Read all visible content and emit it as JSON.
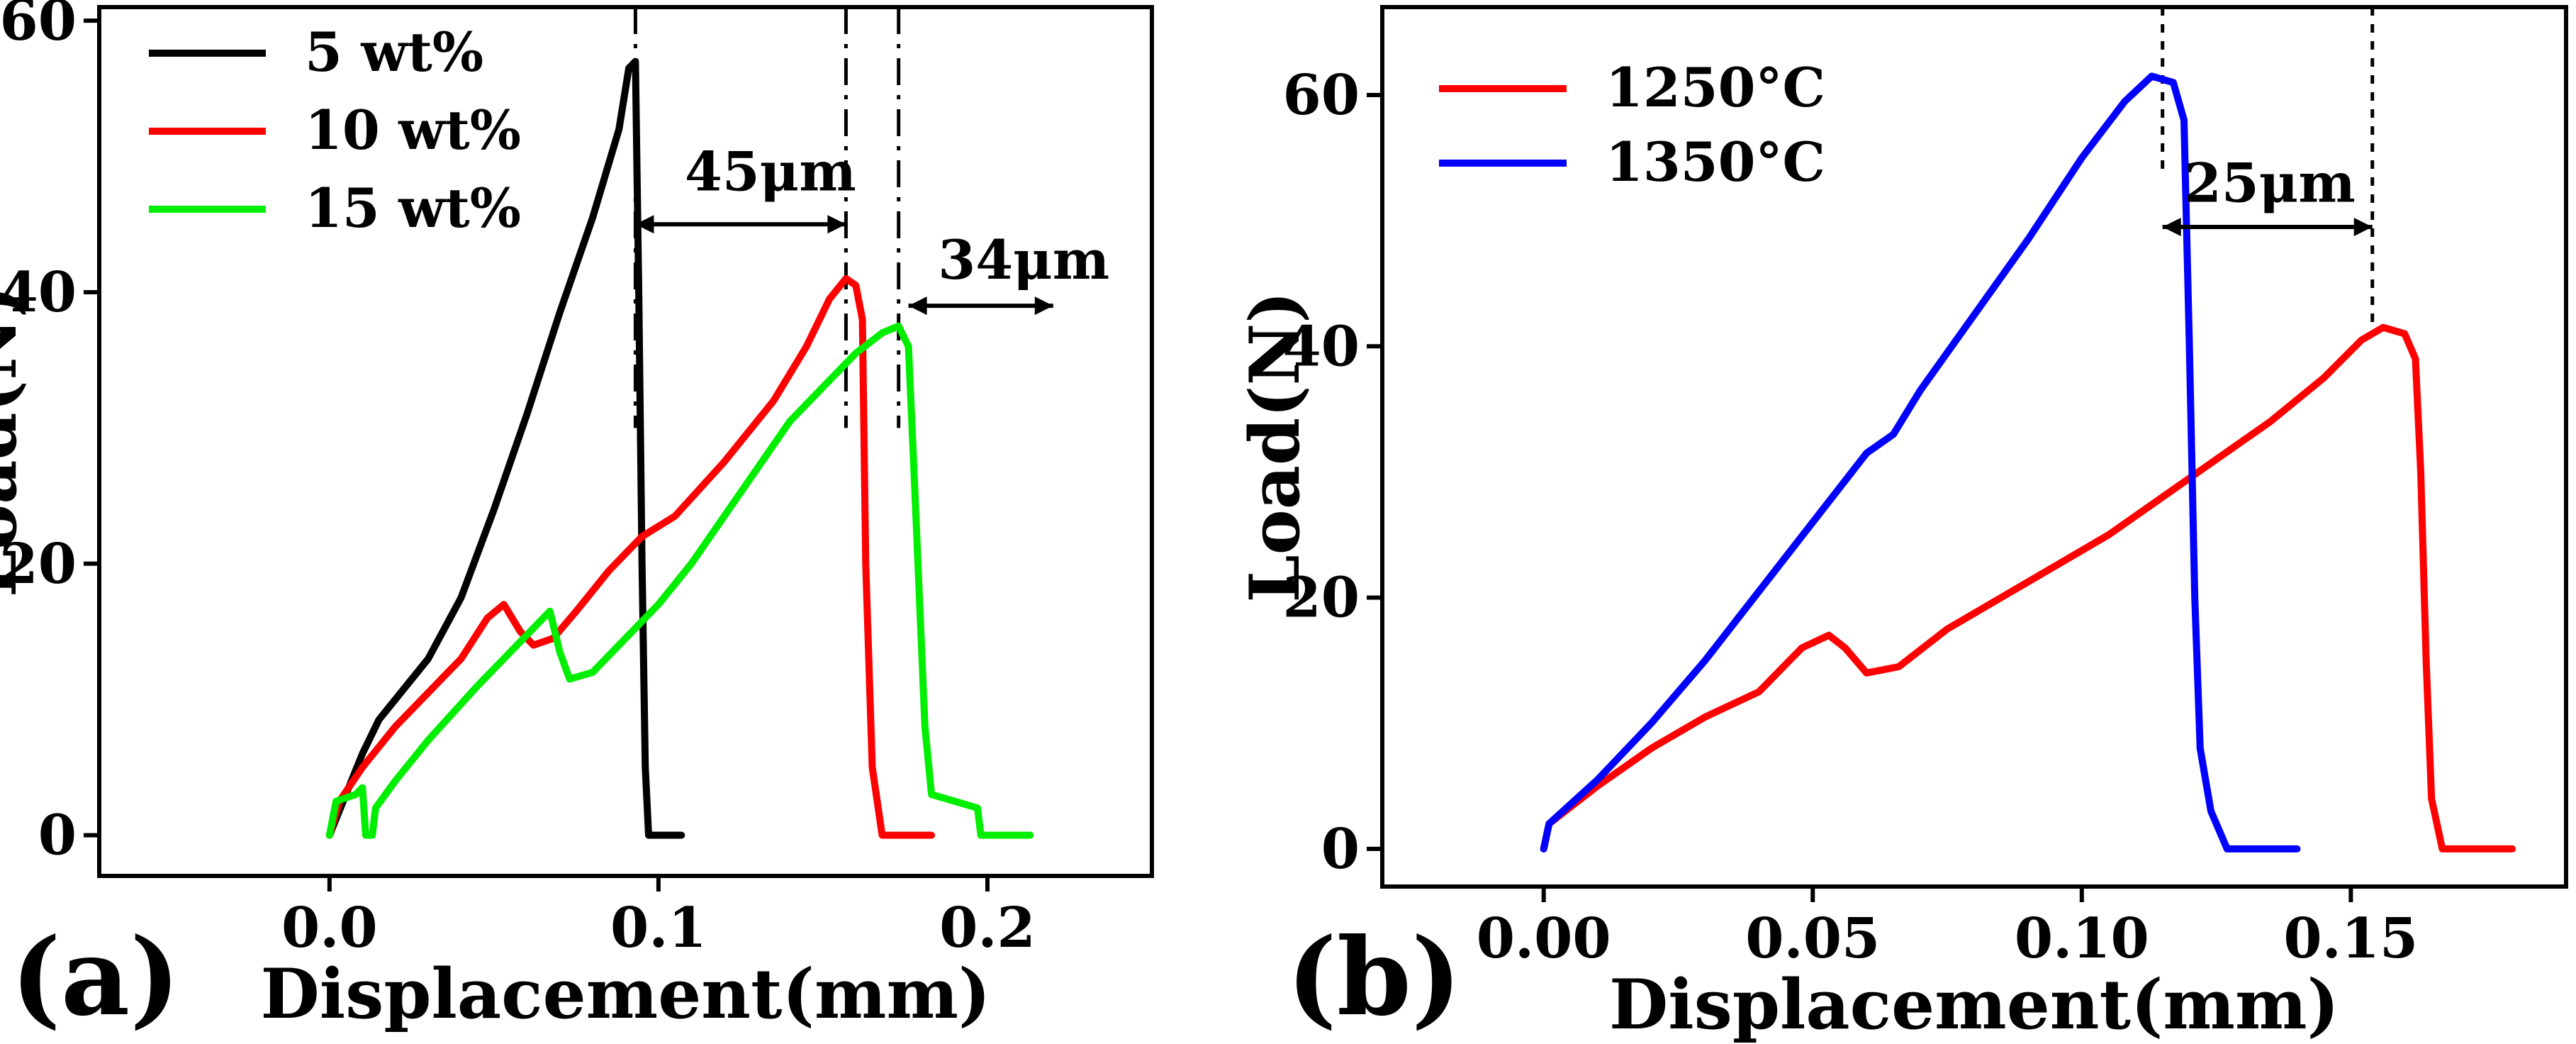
{
  "chart_data": [
    {
      "type": "line",
      "panel_label": "(a)",
      "xlabel": "Displacement(mm)",
      "ylabel": "Load(N)",
      "xlim": [
        -0.07,
        0.25
      ],
      "ylim": [
        -3,
        61
      ],
      "xticks": [
        0.0,
        0.1,
        0.2
      ],
      "xtick_labels": [
        "0.0",
        "0.1",
        "0.2"
      ],
      "yticks": [
        0,
        20,
        40,
        60
      ],
      "ytick_labels": [
        "0",
        "20",
        "40",
        "60"
      ],
      "legend": {
        "position": "top-left"
      },
      "series": [
        {
          "name": "5  wt%",
          "color": "#000000",
          "points": [
            [
              0.0,
              0
            ],
            [
              0.005,
              3
            ],
            [
              0.01,
              6
            ],
            [
              0.015,
              8.5
            ],
            [
              0.02,
              10
            ],
            [
              0.03,
              13
            ],
            [
              0.04,
              17.5
            ],
            [
              0.05,
              24
            ],
            [
              0.06,
              31
            ],
            [
              0.07,
              38.5
            ],
            [
              0.08,
              45.5
            ],
            [
              0.088,
              52
            ],
            [
              0.091,
              56.5
            ],
            [
              0.093,
              57
            ],
            [
              0.094,
              40
            ],
            [
              0.095,
              20
            ],
            [
              0.096,
              5
            ],
            [
              0.097,
              0
            ],
            [
              0.107,
              0
            ]
          ]
        },
        {
          "name": "10 wt%",
          "color": "#ff0000",
          "points": [
            [
              0.0,
              0
            ],
            [
              0.003,
              2.5
            ],
            [
              0.01,
              5
            ],
            [
              0.02,
              8
            ],
            [
              0.03,
              10.5
            ],
            [
              0.04,
              13
            ],
            [
              0.048,
              16
            ],
            [
              0.053,
              17
            ],
            [
              0.058,
              15
            ],
            [
              0.062,
              14
            ],
            [
              0.068,
              14.5
            ],
            [
              0.075,
              16.5
            ],
            [
              0.085,
              19.5
            ],
            [
              0.095,
              22
            ],
            [
              0.105,
              23.5
            ],
            [
              0.12,
              27.5
            ],
            [
              0.135,
              32
            ],
            [
              0.145,
              36
            ],
            [
              0.152,
              39.5
            ],
            [
              0.157,
              41
            ],
            [
              0.16,
              40.5
            ],
            [
              0.162,
              38
            ],
            [
              0.163,
              20
            ],
            [
              0.165,
              5
            ],
            [
              0.168,
              0
            ],
            [
              0.183,
              0
            ]
          ]
        },
        {
          "name": "15 wt%",
          "color": "#00ee00",
          "points": [
            [
              0.0,
              0
            ],
            [
              0.002,
              2.5
            ],
            [
              0.008,
              3
            ],
            [
              0.01,
              3.5
            ],
            [
              0.011,
              0
            ],
            [
              0.013,
              0
            ],
            [
              0.014,
              2
            ],
            [
              0.02,
              4
            ],
            [
              0.03,
              7
            ],
            [
              0.045,
              11
            ],
            [
              0.055,
              13.5
            ],
            [
              0.063,
              15.5
            ],
            [
              0.067,
              16.5
            ],
            [
              0.07,
              13.5
            ],
            [
              0.073,
              11.5
            ],
            [
              0.08,
              12
            ],
            [
              0.09,
              14.5
            ],
            [
              0.1,
              17
            ],
            [
              0.11,
              20
            ],
            [
              0.12,
              23.5
            ],
            [
              0.13,
              27
            ],
            [
              0.14,
              30.5
            ],
            [
              0.15,
              33
            ],
            [
              0.16,
              35.5
            ],
            [
              0.168,
              37
            ],
            [
              0.173,
              37.5
            ],
            [
              0.176,
              36
            ],
            [
              0.178,
              25
            ],
            [
              0.181,
              8
            ],
            [
              0.183,
              3
            ],
            [
              0.19,
              2.5
            ],
            [
              0.197,
              2
            ],
            [
              0.198,
              0
            ],
            [
              0.213,
              0
            ]
          ]
        }
      ],
      "annotations": [
        {
          "text": "45μm",
          "from_x": 0.093,
          "to_x": 0.157,
          "y": 45,
          "label_x": 0.108,
          "label_y": 47.5
        },
        {
          "text": "34μm",
          "from_x": 0.176,
          "to_x": 0.22,
          "y": 39,
          "label_x": 0.185,
          "label_y": 41
        }
      ],
      "reference_lines_x": [
        0.093,
        0.157,
        0.173
      ]
    },
    {
      "type": "line",
      "panel_label": "(b)",
      "xlabel": "Displacement(mm)",
      "ylabel": "Load(N)",
      "xlim": [
        -0.03,
        0.19
      ],
      "ylim": [
        -3,
        67
      ],
      "xticks": [
        0.0,
        0.05,
        0.1,
        0.15
      ],
      "xtick_labels": [
        "0.00",
        "0.05",
        "0.10",
        "0.15"
      ],
      "yticks": [
        0,
        20,
        40,
        60
      ],
      "ytick_labels": [
        "0",
        "20",
        "40",
        "60"
      ],
      "legend": {
        "position": "top-left"
      },
      "series": [
        {
          "name": "1250°C",
          "color": "#ff0000",
          "points": [
            [
              0.0,
              0
            ],
            [
              0.001,
              2
            ],
            [
              0.01,
              5
            ],
            [
              0.02,
              8
            ],
            [
              0.03,
              10.5
            ],
            [
              0.04,
              12.5
            ],
            [
              0.048,
              16
            ],
            [
              0.053,
              17
            ],
            [
              0.056,
              16
            ],
            [
              0.06,
              14
            ],
            [
              0.066,
              14.5
            ],
            [
              0.075,
              17.5
            ],
            [
              0.085,
              20
            ],
            [
              0.095,
              22.5
            ],
            [
              0.105,
              25
            ],
            [
              0.115,
              28
            ],
            [
              0.125,
              31
            ],
            [
              0.135,
              34
            ],
            [
              0.145,
              37.5
            ],
            [
              0.152,
              40.5
            ],
            [
              0.156,
              41.5
            ],
            [
              0.16,
              41
            ],
            [
              0.162,
              39
            ],
            [
              0.163,
              30
            ],
            [
              0.164,
              15
            ],
            [
              0.165,
              4
            ],
            [
              0.167,
              0
            ],
            [
              0.18,
              0
            ]
          ]
        },
        {
          "name": "1350°C",
          "color": "#0000ff",
          "points": [
            [
              0.0,
              0
            ],
            [
              0.001,
              2
            ],
            [
              0.01,
              5.5
            ],
            [
              0.02,
              10
            ],
            [
              0.03,
              15
            ],
            [
              0.04,
              20.5
            ],
            [
              0.05,
              26
            ],
            [
              0.06,
              31.5
            ],
            [
              0.065,
              33
            ],
            [
              0.07,
              36.5
            ],
            [
              0.08,
              42.5
            ],
            [
              0.09,
              48.5
            ],
            [
              0.1,
              55
            ],
            [
              0.108,
              59.5
            ],
            [
              0.113,
              61.5
            ],
            [
              0.117,
              61
            ],
            [
              0.119,
              58
            ],
            [
              0.12,
              40
            ],
            [
              0.121,
              20
            ],
            [
              0.122,
              8
            ],
            [
              0.124,
              3
            ],
            [
              0.127,
              0
            ],
            [
              0.14,
              0
            ]
          ]
        }
      ],
      "annotations": [
        {
          "text": "25μm",
          "from_x": 0.115,
          "to_x": 0.154,
          "y": 49.5,
          "label_x": 0.119,
          "label_y": 51.5
        }
      ],
      "reference_lines_x": [
        0.115,
        0.154
      ]
    }
  ]
}
